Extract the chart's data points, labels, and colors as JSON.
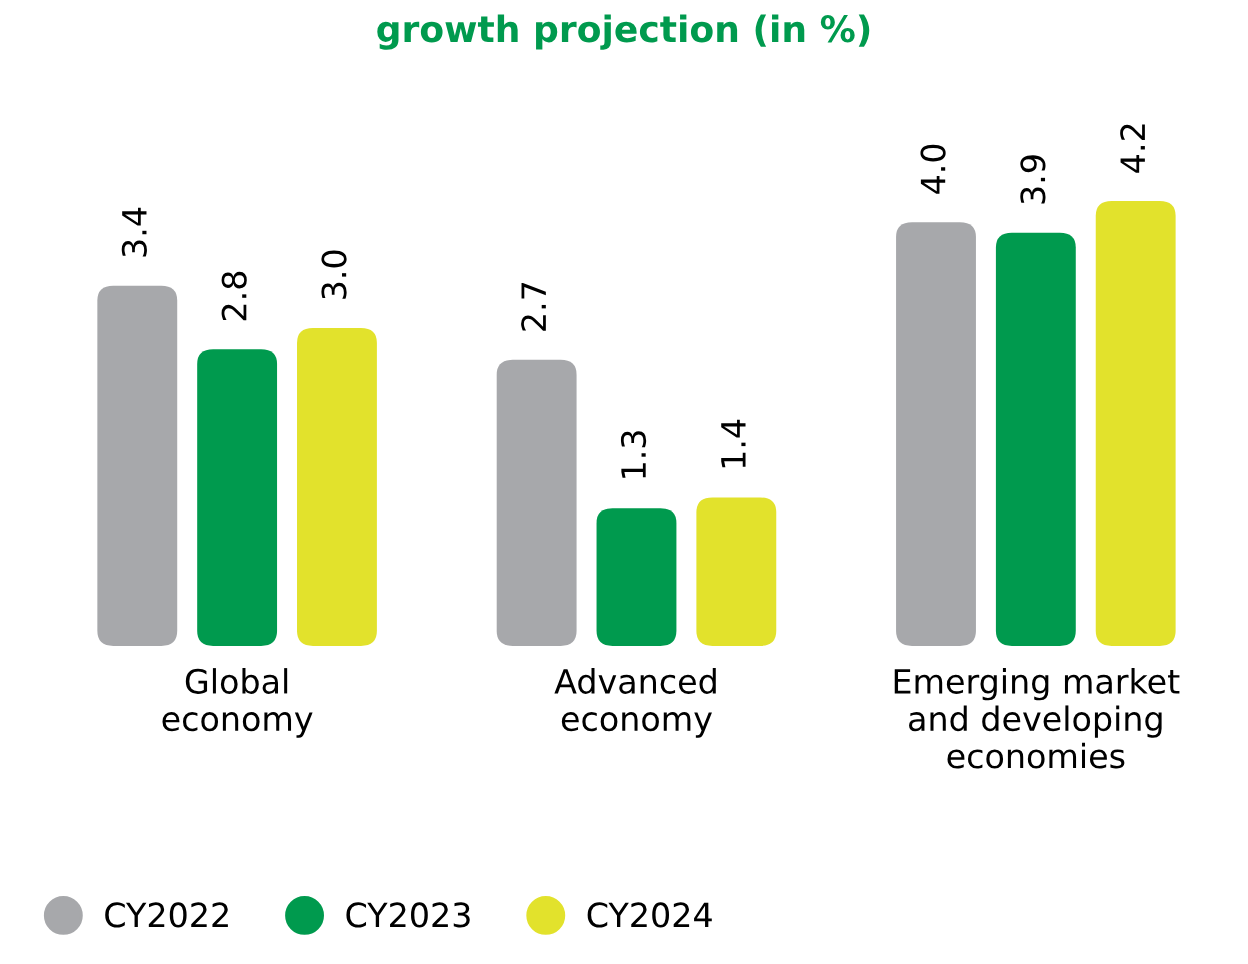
{
  "chart_data": {
    "type": "bar",
    "title": "growth projection (in %)",
    "categories": [
      "Global\neconomy",
      "Advanced\neconomy",
      "Emerging market\nand developing\neconomies"
    ],
    "series": [
      {
        "name": "CY2022",
        "color": "#a7a8ab",
        "values": [
          3.4,
          2.7,
          4.0
        ],
        "value_labels": [
          "3.4",
          "2.7",
          "4.0"
        ]
      },
      {
        "name": "CY2023",
        "color": "#009a4e",
        "values": [
          2.8,
          1.3,
          3.9
        ],
        "value_labels": [
          "2.8",
          "1.3",
          "3.9"
        ]
      },
      {
        "name": "CY2024",
        "color": "#e2e22c",
        "values": [
          3.0,
          1.4,
          4.2
        ],
        "value_labels": [
          "3.0",
          "1.4",
          "4.2"
        ]
      }
    ],
    "legend": "bottom left",
    "grid": false
  }
}
